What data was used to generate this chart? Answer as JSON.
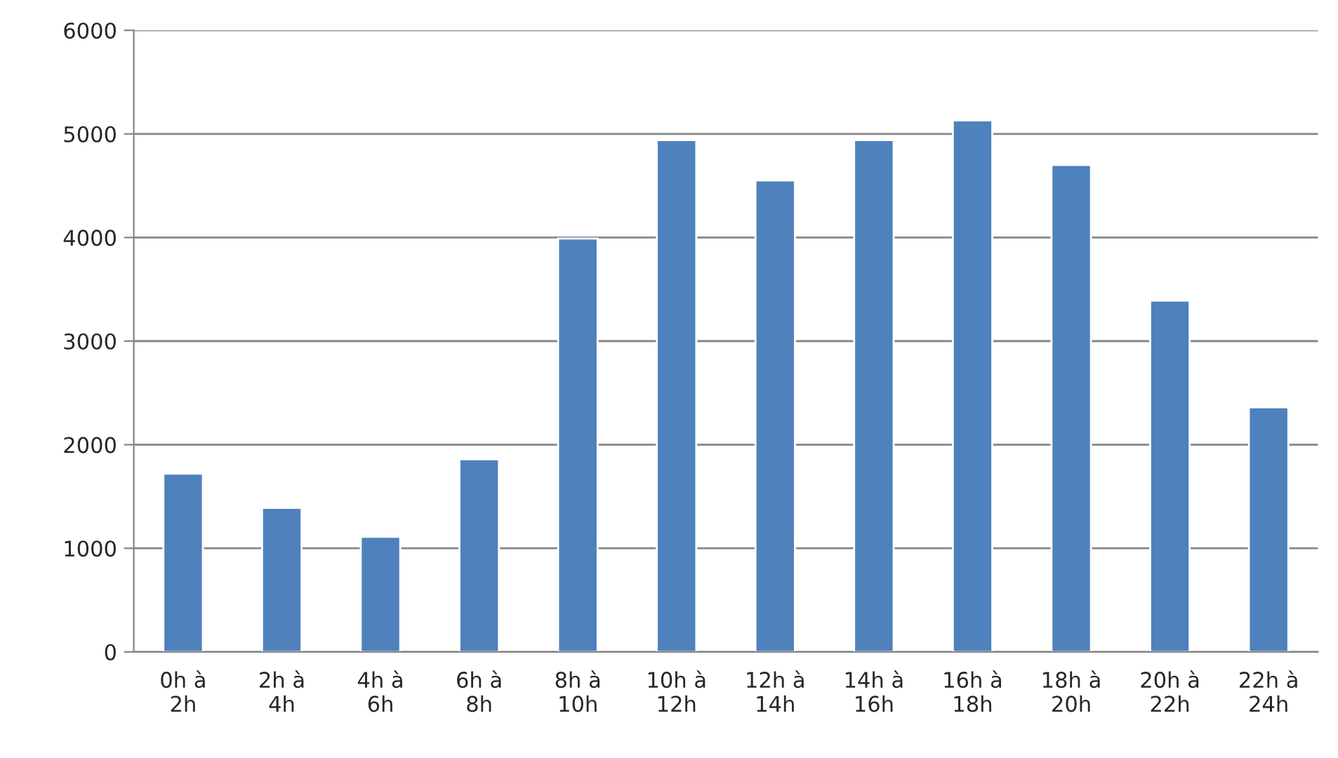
{
  "chart_data": {
    "type": "bar",
    "categories": [
      "0h à\n2h",
      "2h à\n4h",
      "4h à\n6h",
      "6h à\n8h",
      "8h à\n10h",
      "10h à\n12h",
      "12h à\n14h",
      "14h à\n16h",
      "16h à\n18h",
      "18h à\n20h",
      "20h à\n22h",
      "22h à\n24h"
    ],
    "values": [
      1720,
      1390,
      1110,
      1860,
      3990,
      4940,
      4550,
      4940,
      5130,
      4700,
      3390,
      2360
    ],
    "color": "#4f81bd",
    "ylim": [
      0,
      6000
    ],
    "yticks": [
      0,
      1000,
      2000,
      3000,
      4000,
      5000,
      6000
    ],
    "grid": "y",
    "legend": false
  }
}
